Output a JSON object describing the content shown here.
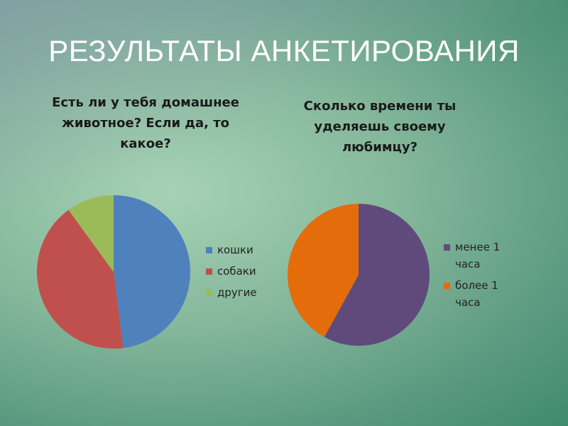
{
  "title": "РЕЗУЛЬТАТЫ АНКЕТИРОВАНИЯ",
  "chart_data": [
    {
      "type": "pie",
      "title": "Есть ли у тебя домашнее животное? Если да, то какое?",
      "categories": [
        "кошки",
        "собаки",
        "другие"
      ],
      "values": [
        48,
        42,
        10
      ],
      "colors": [
        "#4f81bd",
        "#c0504d",
        "#9bbb59"
      ]
    },
    {
      "type": "pie",
      "title": "Сколько времени ты уделяешь своему любимцу?",
      "categories": [
        "менее 1 часа",
        "более 1 часа"
      ],
      "values": [
        58,
        42
      ],
      "colors": [
        "#604a7b",
        "#e46c0a"
      ]
    }
  ]
}
